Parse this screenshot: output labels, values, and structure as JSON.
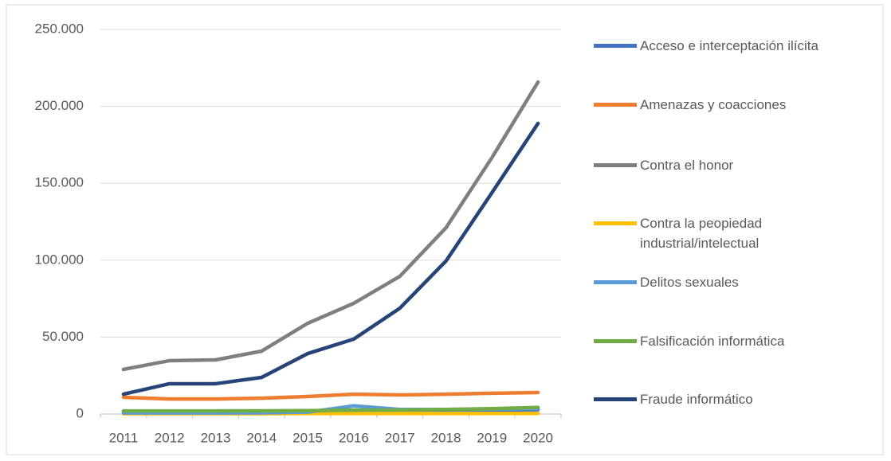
{
  "chart_data": {
    "type": "line",
    "categories": [
      "2011",
      "2012",
      "2013",
      "2014",
      "2015",
      "2016",
      "2017",
      "2018",
      "2019",
      "2020"
    ],
    "ylim": [
      0,
      250000
    ],
    "yticks": [
      0,
      {
        "value": 50000,
        "label": "50.000"
      },
      {
        "value": 100000,
        "label": "100.000"
      },
      {
        "value": 150000,
        "label": "150.000"
      },
      {
        "value": 200000,
        "label": "200.000"
      },
      {
        "value": 250000,
        "label": "250.000"
      }
    ],
    "grid": true,
    "legend": "right",
    "series": [
      {
        "name": "Acceso e interceptación ilícita",
        "color": "#4472c4",
        "values": [
          1800,
          1800,
          1800,
          1900,
          2000,
          2100,
          2200,
          2400,
          2600,
          2800
        ]
      },
      {
        "name": "Amenazas y coacciones",
        "color": "#ed7d31",
        "values": [
          10900,
          9800,
          9800,
          10300,
          11400,
          12900,
          12400,
          12900,
          13500,
          14000
        ]
      },
      {
        "name": "Contra el honor",
        "color": "#7f7f7f",
        "values": [
          29000,
          34700,
          35200,
          40900,
          59000,
          72000,
          89500,
          121000,
          166700,
          215800
        ]
      },
      {
        "name": "Contra la peopiedad\nindustrial/intelectual",
        "color": "#ffc000",
        "values": [
          200,
          200,
          200,
          200,
          300,
          300,
          300,
          300,
          400,
          400
        ]
      },
      {
        "name": "Delitos sexuales",
        "color": "#5b9bd5",
        "values": [
          700,
          700,
          700,
          750,
          1250,
          5300,
          3000,
          3000,
          3200,
          3500
        ]
      },
      {
        "name": "Falsificación informática",
        "color": "#70ad47",
        "values": [
          2000,
          2000,
          2000,
          2100,
          2200,
          2500,
          2600,
          3000,
          3500,
          4300
        ]
      },
      {
        "name": "Fraude informático",
        "color": "#264478",
        "values": [
          12900,
          19700,
          19700,
          23800,
          39300,
          48700,
          68800,
          99400,
          143900,
          188900
        ]
      }
    ]
  }
}
